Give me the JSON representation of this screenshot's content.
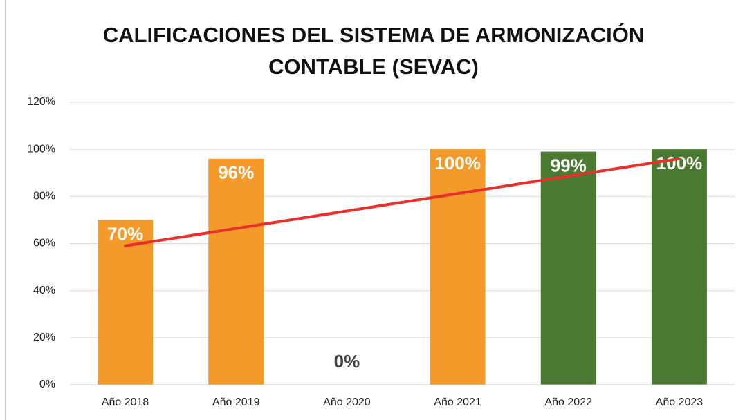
{
  "chart_data": {
    "type": "bar",
    "title": "CALIFICACIONES DEL SISTEMA DE ARMONIZACIÓN CONTABLE (SEVAC)",
    "categories": [
      "Año 2018",
      "Año 2019",
      "Año 2020",
      "Año 2021",
      "Año 2022",
      "Año 2023"
    ],
    "values": [
      70,
      96,
      0,
      100,
      99,
      100
    ],
    "value_labels": [
      "70%",
      "96%",
      "0%",
      "100%",
      "99%",
      "100%"
    ],
    "colors": [
      "#f39a2b",
      "#f39a2b",
      "#f39a2b",
      "#f39a2b",
      "#4a7a32",
      "#4a7a32"
    ],
    "trendline": {
      "color": "#e8302a",
      "values": [
        59,
        66.4,
        73.8,
        81.2,
        88.6,
        96
      ]
    },
    "ylim": [
      0,
      120
    ],
    "yticks": [
      {
        "value": 0,
        "label": "0%"
      },
      {
        "value": 20,
        "label": "20%"
      },
      {
        "value": 40,
        "label": "40%"
      },
      {
        "value": 60,
        "label": "60%"
      },
      {
        "value": 80,
        "label": "80%"
      },
      {
        "value": 100,
        "label": "100%"
      },
      {
        "value": 120,
        "label": "120%"
      }
    ],
    "grid": true
  }
}
